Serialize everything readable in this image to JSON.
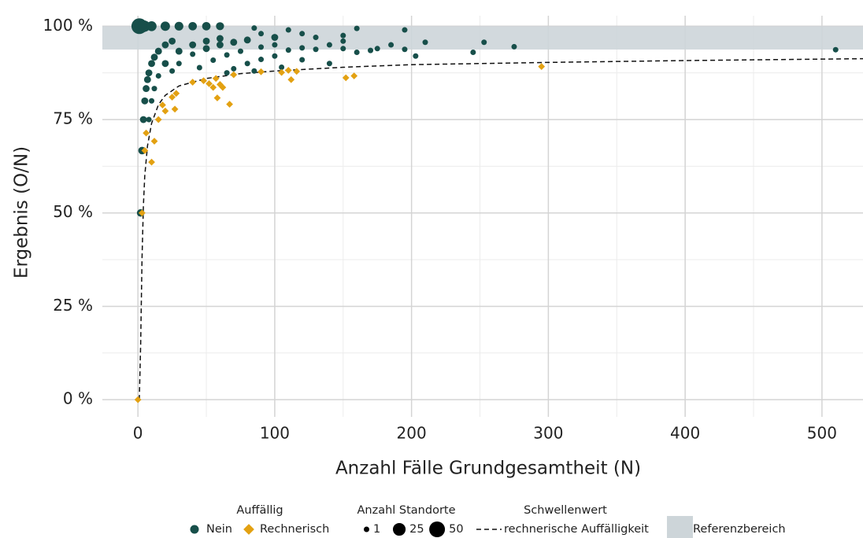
{
  "chart_data": {
    "type": "scatter",
    "x_label": "Anzahl Fälle Grundgesamtheit (N)",
    "y_label": "Ergebnis (O/N)",
    "xlim": [
      -26,
      530
    ],
    "ylim": [
      -4.6,
      102.8
    ],
    "xticks": [
      0,
      100,
      200,
      300,
      400,
      500
    ],
    "yticks": [
      {
        "value": 0,
        "label": "0 %"
      },
      {
        "value": 25,
        "label": "25 %"
      },
      {
        "value": 50,
        "label": "50 %"
      },
      {
        "value": 75,
        "label": "75 %"
      },
      {
        "value": 100,
        "label": "100 %"
      }
    ],
    "grid": true,
    "legend_position": "bottom",
    "color_legend_title": "Auffällig",
    "size_legend_title": "Anzahl Standorte",
    "size_legend": [
      1,
      25,
      50
    ],
    "threshold_legend_title": "Schwellenwert",
    "reference": {
      "name": "Referenzbereich",
      "range": [
        93.75,
        100
      ],
      "color": "#cdd5d9"
    },
    "threshold": {
      "name": "rechnerische Auffälligkeit",
      "color": "#111111",
      "x": [
        1,
        2,
        3,
        4,
        5,
        7,
        10,
        15,
        20,
        30,
        50,
        75,
        100,
        150,
        200,
        300,
        400,
        530
      ],
      "values": [
        0,
        15,
        38,
        52,
        60,
        68,
        74,
        79,
        81.5,
        84,
        86,
        87.3,
        88,
        89,
        89.7,
        90.3,
        90.8,
        91.3
      ]
    },
    "series": [
      {
        "name": "Nein",
        "color": "#174f4a",
        "marker": "circle",
        "x": [
          1,
          2,
          3,
          4,
          5,
          10,
          20,
          30,
          40,
          50,
          60,
          2,
          3,
          4,
          5,
          6,
          7,
          8,
          10,
          12,
          15,
          20,
          25,
          8,
          10,
          12,
          15,
          20,
          30,
          40,
          50,
          60,
          25,
          30,
          40,
          50,
          60,
          70,
          80,
          45,
          55,
          65,
          75,
          90,
          100,
          70,
          80,
          90,
          100,
          110,
          120,
          130,
          140,
          150,
          150,
          110,
          120,
          130,
          150,
          160,
          170,
          185,
          195,
          195,
          210,
          203,
          245,
          253,
          275,
          510,
          85,
          100,
          90,
          120,
          140,
          160,
          175,
          65,
          85,
          105
        ],
        "values": [
          100,
          100,
          100,
          100,
          100,
          100,
          100,
          100,
          100,
          100,
          100,
          50,
          66.7,
          75,
          80,
          83.3,
          85.7,
          87.5,
          90,
          91.7,
          93.3,
          95,
          96,
          75,
          80,
          83.3,
          86.7,
          90,
          93.3,
          95,
          96,
          96.7,
          88,
          90,
          92.5,
          94,
          95,
          95.7,
          96.3,
          88.9,
          90.9,
          92.3,
          93.3,
          94.4,
          95,
          88.6,
          90,
          91.1,
          92,
          93.6,
          94.2,
          93.8,
          95,
          96,
          94,
          99,
          98,
          97,
          97.5,
          99.4,
          93.5,
          95,
          99,
          93.8,
          95.7,
          92,
          93,
          95.7,
          94.5,
          93.7,
          99.5,
          97,
          98,
          91,
          90,
          93,
          94,
          87.5,
          88,
          89
        ],
        "sizes": [
          50,
          30,
          25,
          20,
          15,
          10,
          8,
          6,
          5,
          5,
          4,
          3,
          3,
          2,
          2,
          2,
          2,
          2,
          2,
          2,
          2,
          2,
          2,
          1,
          1,
          1,
          1,
          2,
          2,
          2,
          2,
          2,
          1,
          1,
          1,
          2,
          2,
          2,
          2,
          1,
          1,
          1,
          1,
          1,
          1,
          1,
          1,
          1,
          1,
          1,
          1,
          1,
          1,
          1,
          1,
          1,
          1,
          1,
          1,
          1,
          1,
          1,
          1,
          1,
          1,
          1,
          1,
          1,
          1,
          1,
          1,
          2,
          1,
          1,
          1,
          1,
          1,
          1,
          1,
          1
        ]
      },
      {
        "name": "Rechnerisch",
        "color": "#e3a112",
        "marker": "diamond",
        "x": [
          0,
          3,
          5,
          6,
          10,
          12,
          15,
          18,
          20,
          25,
          27,
          28,
          40,
          48,
          52,
          55,
          57,
          58,
          60,
          62,
          67,
          70,
          90,
          105,
          110,
          112,
          116,
          152,
          158,
          295
        ],
        "values": [
          0,
          50,
          66.7,
          71.4,
          63.6,
          69.2,
          75,
          78.9,
          77.3,
          81,
          77.8,
          82,
          85,
          85.4,
          84.6,
          83.6,
          86,
          80.8,
          84.4,
          83.6,
          79.1,
          87,
          87.8,
          87.6,
          88.2,
          85.7,
          87.9,
          86.2,
          86.7,
          89.2
        ],
        "sizes": [
          1,
          1,
          1,
          1,
          1,
          1,
          1,
          1,
          1,
          1,
          1,
          1,
          1,
          1,
          1,
          1,
          1,
          1,
          1,
          1,
          1,
          1,
          1,
          1,
          1,
          1,
          1,
          1,
          1,
          1
        ]
      }
    ]
  }
}
